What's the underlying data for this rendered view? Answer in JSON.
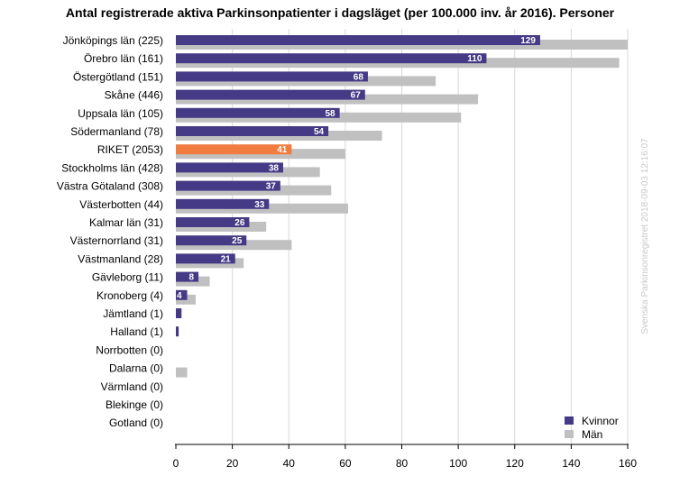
{
  "chart_data": {
    "type": "bar",
    "orientation": "horizontal",
    "title": "Antal registrerade aktiva Parkinsonpatienter i dagsläget (per 100.000 inv. år 2016). Personer",
    "categories": [
      "Jönköpings län (225)",
      "Örebro län (161)",
      "Östergötland (151)",
      "Skåne (446)",
      "Uppsala län (105)",
      "Södermanland (78)",
      "RIKET (2053)",
      "Stockholms län (428)",
      "Västra Götaland (308)",
      "Västerbotten (44)",
      "Kalmar län (31)",
      "Västernorrland (31)",
      "Västmanland (28)",
      "Gävleborg (11)",
      "Kronoberg (4)",
      "Jämtland (1)",
      "Halland (1)",
      "Norrbotten (0)",
      "Dalarna (0)",
      "Värmland (0)",
      "Blekinge (0)",
      "Gotland (0)"
    ],
    "highlight_category": "RIKET (2053)",
    "series": [
      {
        "name": "Kvinnor",
        "color": "#453a86",
        "values": [
          129,
          110,
          68,
          67,
          58,
          54,
          41,
          38,
          37,
          33,
          26,
          25,
          21,
          8,
          4,
          2,
          1,
          0,
          0,
          0,
          0,
          0
        ],
        "data_labels": [
          "129",
          "110",
          "68",
          "67",
          "58",
          "54",
          "41",
          "38",
          "37",
          "33",
          "26",
          "25",
          "21",
          "8",
          "4",
          "",
          "",
          "",
          "",
          "",
          "",
          ""
        ]
      },
      {
        "name": "Män",
        "color": "#c0c0c0",
        "values": [
          160,
          157,
          92,
          107,
          101,
          73,
          60,
          51,
          55,
          61,
          32,
          41,
          24,
          12,
          7,
          0,
          0,
          0,
          4,
          0,
          0,
          0
        ]
      }
    ],
    "highlight_color": "#f07c3f",
    "xlim": [
      0,
      160
    ],
    "xticks": [
      0,
      20,
      40,
      60,
      80,
      100,
      120,
      140,
      160
    ],
    "grid": true,
    "legend_position": "bottom-right",
    "watermark": "Svenska Parkinsonregistret 2018-09-03 12:16:07"
  }
}
